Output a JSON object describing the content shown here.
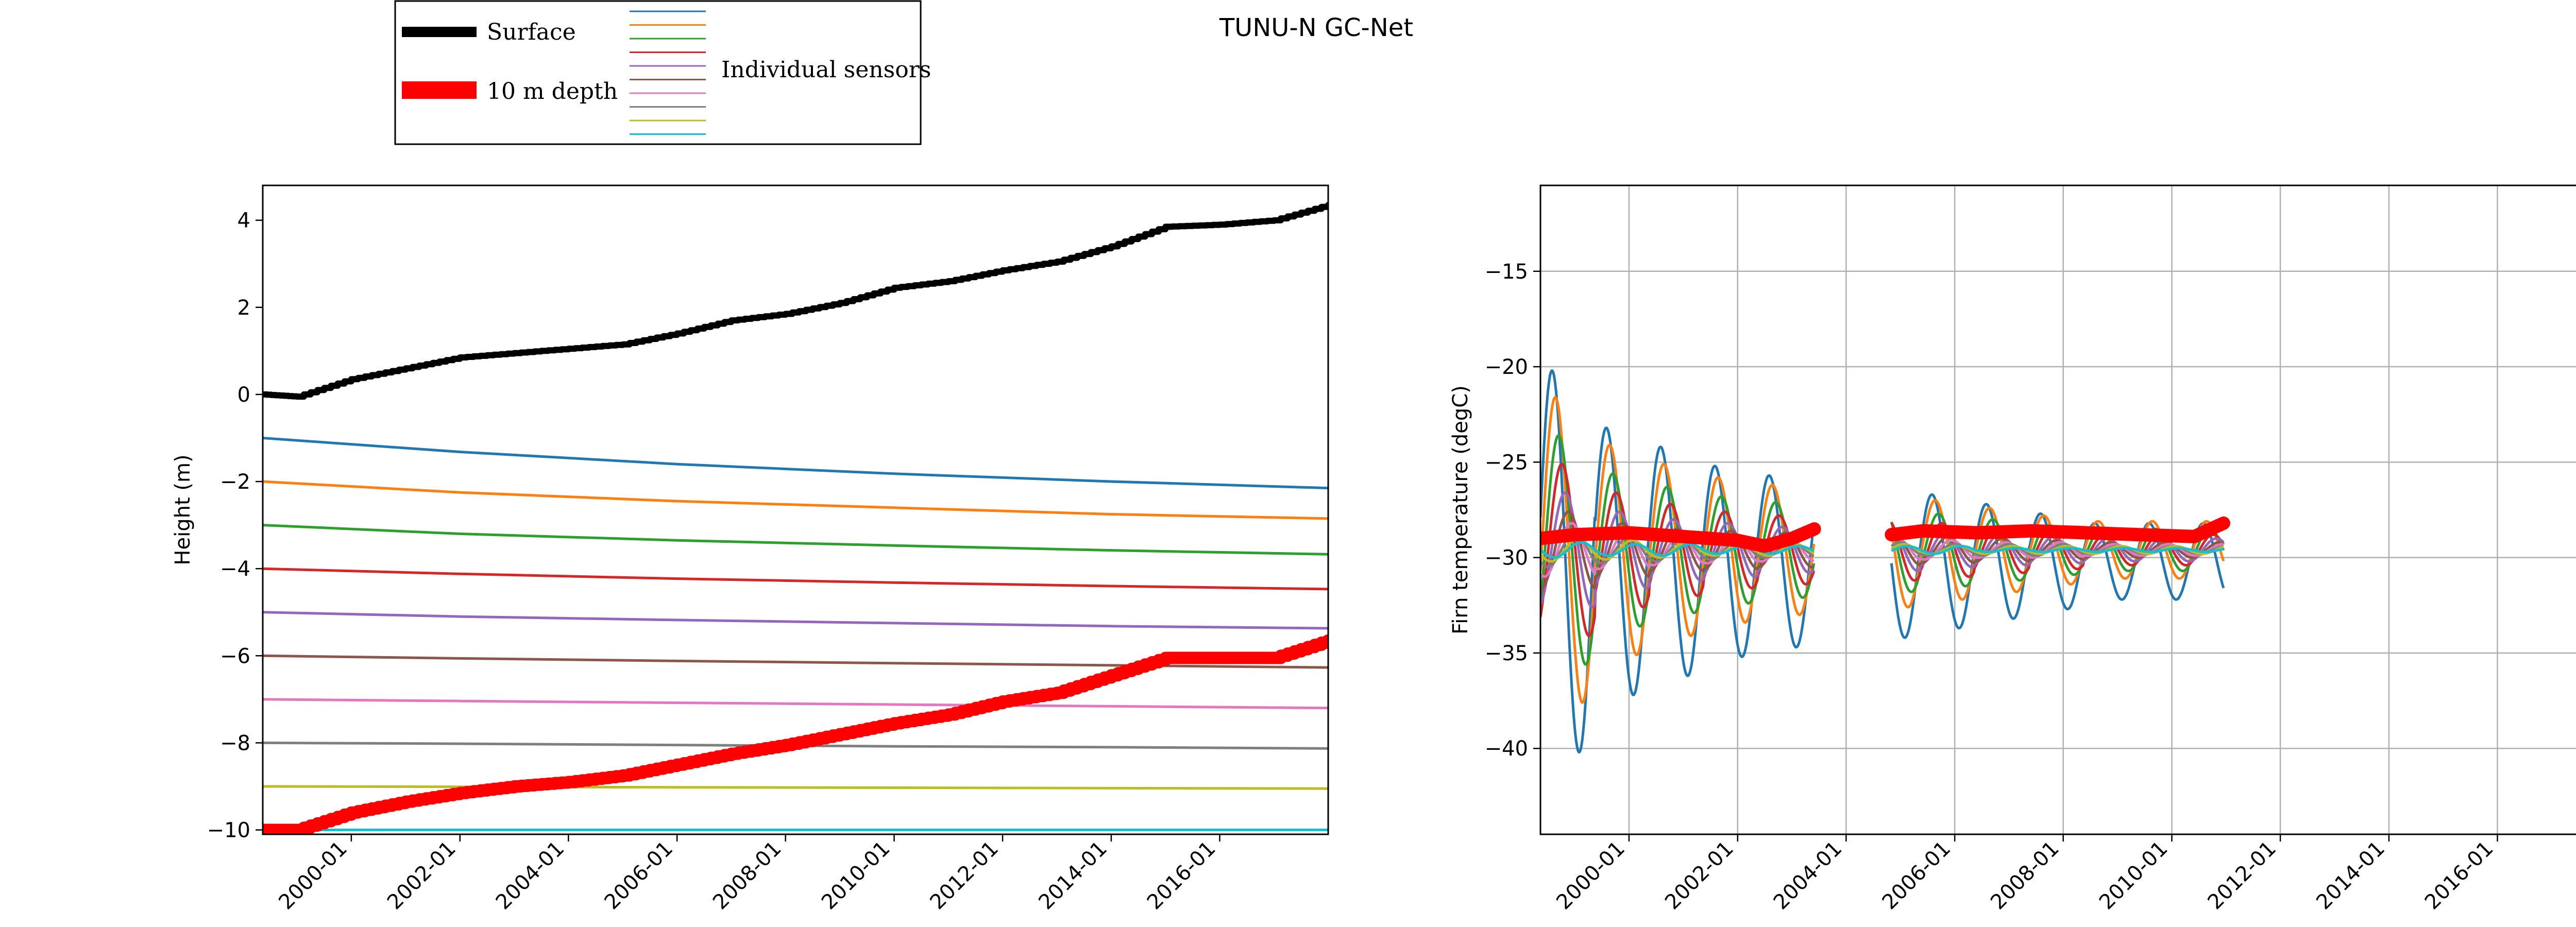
{
  "figure": {
    "title": "TUNU-N GC-Net",
    "legend": {
      "placement": "top-left",
      "entries": [
        {
          "label": "Surface",
          "color": "#000000"
        },
        {
          "label": "10 m depth",
          "color": "#ff0000"
        },
        {
          "label": "Individual sensors"
        }
      ],
      "sensor_colors": [
        "#1f77b4",
        "#ff7f0e",
        "#2ca02c",
        "#d62728",
        "#9467bd",
        "#8c564b",
        "#e377c2",
        "#7f7f7f",
        "#bcbd22",
        "#17becf"
      ]
    }
  },
  "chart_data": [
    {
      "type": "line",
      "ylabel": "Height (m)",
      "xlabel": "",
      "xlim": [
        "1998-05-15",
        "2017-12-31"
      ],
      "ylim": [
        -10.1,
        4.8
      ],
      "yticks": [
        4,
        2,
        0,
        -2,
        -4,
        -6,
        -8,
        -10
      ],
      "yticklabels": [
        "4",
        "2",
        "0",
        "−2",
        "−4",
        "−6",
        "−8",
        "−10"
      ],
      "xticklabels": [
        "2000-01",
        "2002-01",
        "2004-01",
        "2006-01",
        "2008-01",
        "2010-01",
        "2012-01",
        "2014-01",
        "2016-01"
      ],
      "grid": false,
      "series": [
        {
          "name": "Surface",
          "color": "#000000",
          "x": [
            "1998-05-15",
            "1999-01-01",
            "2000-01-01",
            "2001-01-01",
            "2002-01-01",
            "2003-01-01",
            "2004-01-01",
            "2005-01-01",
            "2006-01-01",
            "2007-01-01",
            "2008-01-01",
            "2009-01-01",
            "2010-01-01",
            "2011-01-01",
            "2012-01-01",
            "2013-01-01",
            "2014-01-01",
            "2015-01-01",
            "2016-01-01",
            "2017-01-01",
            "2017-12-31"
          ],
          "y": [
            0.0,
            -0.05,
            0.35,
            0.6,
            0.85,
            0.95,
            1.05,
            1.15,
            1.4,
            1.7,
            1.85,
            2.1,
            2.45,
            2.6,
            2.85,
            3.05,
            3.4,
            3.85,
            3.9,
            4.0,
            4.35
          ]
        },
        {
          "name": "10 m depth",
          "color": "#ff0000",
          "x": [
            "1998-05-15",
            "1999-01-01",
            "2000-01-01",
            "2001-01-01",
            "2002-01-01",
            "2003-01-01",
            "2004-01-01",
            "2005-01-01",
            "2006-01-01",
            "2007-01-01",
            "2008-01-01",
            "2009-01-01",
            "2010-01-01",
            "2011-01-01",
            "2012-01-01",
            "2013-01-01",
            "2014-01-01",
            "2015-01-01",
            "2016-01-01",
            "2017-01-01",
            "2017-12-31"
          ],
          "y": [
            -10.0,
            -10.0,
            -9.6,
            -9.35,
            -9.15,
            -9.0,
            -8.9,
            -8.75,
            -8.5,
            -8.25,
            -8.05,
            -7.8,
            -7.55,
            -7.35,
            -7.05,
            -6.85,
            -6.45,
            -6.05,
            -6.05,
            -6.05,
            -5.65
          ]
        },
        {
          "name": "",
          "color": "#1f77b4",
          "x": [
            "1998-05-15",
            "2002-01-01",
            "2006-01-01",
            "2010-01-01",
            "2014-01-01",
            "2017-12-31"
          ],
          "y": [
            -1.0,
            -1.32,
            -1.6,
            -1.82,
            -2.0,
            -2.15
          ]
        },
        {
          "name": "",
          "color": "#ff7f0e",
          "x": [
            "1998-05-15",
            "2002-01-01",
            "2006-01-01",
            "2010-01-01",
            "2014-01-01",
            "2017-12-31"
          ],
          "y": [
            -2.0,
            -2.25,
            -2.45,
            -2.6,
            -2.75,
            -2.85
          ]
        },
        {
          "name": "",
          "color": "#2ca02c",
          "x": [
            "1998-05-15",
            "2002-01-01",
            "2006-01-01",
            "2010-01-01",
            "2014-01-01",
            "2017-12-31"
          ],
          "y": [
            -3.0,
            -3.2,
            -3.35,
            -3.47,
            -3.58,
            -3.67
          ]
        },
        {
          "name": "",
          "color": "#d62728",
          "x": [
            "1998-05-15",
            "2002-01-01",
            "2006-01-01",
            "2010-01-01",
            "2014-01-01",
            "2017-12-31"
          ],
          "y": [
            -4.0,
            -4.12,
            -4.23,
            -4.32,
            -4.4,
            -4.47
          ]
        },
        {
          "name": "",
          "color": "#9467bd",
          "x": [
            "1998-05-15",
            "2002-01-01",
            "2006-01-01",
            "2010-01-01",
            "2014-01-01",
            "2017-12-31"
          ],
          "y": [
            -5.0,
            -5.1,
            -5.18,
            -5.25,
            -5.32,
            -5.37
          ]
        },
        {
          "name": "",
          "color": "#8c564b",
          "x": [
            "1998-05-15",
            "2002-01-01",
            "2006-01-01",
            "2010-01-01",
            "2014-01-01",
            "2017-12-31"
          ],
          "y": [
            -6.0,
            -6.06,
            -6.12,
            -6.17,
            -6.22,
            -6.27
          ]
        },
        {
          "name": "",
          "color": "#e377c2",
          "x": [
            "1998-05-15",
            "2002-01-01",
            "2006-01-01",
            "2010-01-01",
            "2014-01-01",
            "2017-12-31"
          ],
          "y": [
            -7.0,
            -7.04,
            -7.08,
            -7.12,
            -7.16,
            -7.2
          ]
        },
        {
          "name": "",
          "color": "#7f7f7f",
          "x": [
            "1998-05-15",
            "2002-01-01",
            "2006-01-01",
            "2010-01-01",
            "2014-01-01",
            "2017-12-31"
          ],
          "y": [
            -8.0,
            -8.02,
            -8.05,
            -8.08,
            -8.1,
            -8.13
          ]
        },
        {
          "name": "",
          "color": "#bcbd22",
          "x": [
            "1998-05-15",
            "2002-01-01",
            "2006-01-01",
            "2010-01-01",
            "2014-01-01",
            "2017-12-31"
          ],
          "y": [
            -9.0,
            -9.01,
            -9.02,
            -9.03,
            -9.04,
            -9.05
          ]
        },
        {
          "name": "",
          "color": "#17becf",
          "x": [
            "1998-05-15",
            "2017-12-31"
          ],
          "y": [
            -10.0,
            -10.0
          ]
        }
      ]
    },
    {
      "type": "line",
      "ylabel": "Firn temperature (degC)",
      "xlabel": "",
      "xlim": [
        "1998-05-15",
        "2017-12-31"
      ],
      "ylim": [
        -44.5,
        -10.5
      ],
      "yticks": [
        -15,
        -20,
        -25,
        -30,
        -35,
        -40
      ],
      "yticklabels": [
        "−15",
        "−20",
        "−25",
        "−30",
        "−35",
        "−40"
      ],
      "xticklabels": [
        "2000-01",
        "2002-01",
        "2004-01",
        "2006-01",
        "2008-01",
        "2010-01",
        "2012-01",
        "2014-01",
        "2016-01"
      ],
      "grid": true,
      "series_note": "",
      "sensor_amplitudes": [
        [
          10,
          7,
          6,
          5,
          4.5,
          0,
          4,
          3.5,
          3,
          2.5,
          2
        ],
        [
          8,
          5.5,
          4.5,
          3.8,
          3.4,
          0,
          3,
          2.6,
          2.2,
          1.8,
          1.5
        ],
        [
          6,
          4,
          3.3,
          2.8,
          2.5,
          0,
          2.2,
          1.9,
          1.6,
          1.3,
          1.1
        ],
        [
          4.5,
          3,
          2.4,
          2,
          1.8,
          0,
          1.6,
          1.4,
          1.2,
          1,
          0.8
        ],
        [
          3,
          2,
          1.6,
          1.4,
          1.2,
          0,
          1.1,
          0.9,
          0.8,
          0.7,
          0.6
        ],
        [
          2,
          1.4,
          1.1,
          1,
          0.9,
          0,
          0.8,
          0.7,
          0.6,
          0.5,
          0.4
        ],
        [
          1.4,
          1,
          0.8,
          0.7,
          0.6,
          0,
          0.6,
          0.5,
          0.4,
          0.4,
          0.3
        ],
        [
          0.9,
          0.7,
          0.6,
          0.5,
          0.4,
          0,
          0.4,
          0.3,
          0.3,
          0.3,
          0.2
        ],
        [
          0.6,
          0.5,
          0.4,
          0.3,
          0.3,
          0,
          0.3,
          0.2,
          0.2,
          0.2,
          0.2
        ],
        [
          0.4,
          0.3,
          0.3,
          0.2,
          0.2,
          0,
          0.2,
          0.2,
          0.1,
          0.1,
          0.1
        ]
      ],
      "sensor_colors": [
        "#1f77b4",
        "#ff7f0e",
        "#2ca02c",
        "#d62728",
        "#9467bd",
        "#8c564b",
        "#e377c2",
        "#7f7f7f",
        "#bcbd22",
        "#17becf"
      ],
      "sensor_mean": -29.0,
      "data_periods": [
        [
          "1998-05-15",
          "2003-06-01"
        ],
        [
          "2004-11-01",
          "2010-12-15"
        ]
      ],
      "depth_10m": {
        "name": "10 m depth",
        "color": "#ff0000",
        "x": [
          "1998-05-15",
          "1999-01-01",
          "2000-01-01",
          "2001-01-01",
          "2002-01-01",
          "2002-07-01",
          "2003-01-01",
          "2003-06-01"
        ],
        "y": [
          -29.0,
          -28.8,
          -28.7,
          -28.9,
          -29.1,
          -29.4,
          -29.0,
          -28.5
        ],
        "x2": [
          "2004-11-01",
          "2005-06-01",
          "2006-06-01",
          "2007-06-01",
          "2008-06-01",
          "2009-06-01",
          "2010-06-01",
          "2010-12-15"
        ],
        "y2": [
          -28.8,
          -28.6,
          -28.7,
          -28.6,
          -28.7,
          -28.8,
          -28.9,
          -28.2
        ]
      }
    }
  ]
}
